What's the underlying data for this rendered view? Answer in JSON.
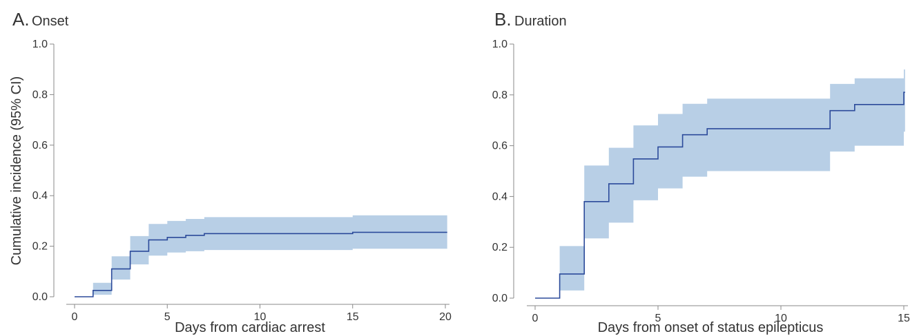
{
  "chart_data": [
    {
      "type": "line",
      "step": true,
      "panel_letter": "A.",
      "panel_title": "Onset",
      "xlabel": "Days from cardiac arrest",
      "ylabel": "Cumulative incidence (95% CI)",
      "xlim": [
        0,
        20
      ],
      "ylim": [
        0,
        1.0
      ],
      "xticks": [
        0,
        5,
        10,
        15,
        20
      ],
      "yticks": [
        "0.0",
        "0.2",
        "0.4",
        "0.6",
        "0.8",
        "1.0"
      ],
      "colors": {
        "line": "#2b4a9a",
        "band": "#b8cfe6"
      },
      "series": [
        {
          "x": [
            0,
            1,
            2,
            3,
            4,
            5,
            6,
            7,
            15,
            20.1
          ],
          "y": [
            0.0,
            0.025,
            0.11,
            0.18,
            0.225,
            0.235,
            0.243,
            0.25,
            0.255,
            0.255
          ],
          "lower": [
            0.0,
            0.008,
            0.068,
            0.128,
            0.163,
            0.175,
            0.18,
            0.185,
            0.19,
            0.19
          ],
          "upper": [
            0.0,
            0.055,
            0.16,
            0.24,
            0.288,
            0.3,
            0.308,
            0.315,
            0.322,
            0.322
          ]
        }
      ]
    },
    {
      "type": "line",
      "step": true,
      "panel_letter": "B.",
      "panel_title": "Duration",
      "xlabel": "Days from onset of status epilepticus",
      "ylabel": "",
      "xlim": [
        0,
        15
      ],
      "ylim": [
        0,
        1.0
      ],
      "xticks": [
        0,
        5,
        10,
        15
      ],
      "yticks": [
        "0.0",
        "0.2",
        "0.4",
        "0.6",
        "0.8",
        "1.0"
      ],
      "colors": {
        "line": "#2b4a9a",
        "band": "#b8cfe6"
      },
      "series": [
        {
          "x": [
            0,
            1,
            2,
            3,
            4,
            5,
            6,
            7,
            12,
            13,
            15,
            15.05
          ],
          "y": [
            0.0,
            0.095,
            0.38,
            0.45,
            0.548,
            0.595,
            0.643,
            0.667,
            0.738,
            0.762,
            0.81,
            0.81
          ],
          "lower": [
            0.0,
            0.03,
            0.235,
            0.297,
            0.385,
            0.432,
            0.478,
            0.5,
            0.577,
            0.6,
            0.655,
            0.655
          ],
          "upper": [
            0.0,
            0.205,
            0.522,
            0.592,
            0.68,
            0.725,
            0.765,
            0.785,
            0.843,
            0.865,
            0.9,
            0.9
          ]
        }
      ]
    }
  ]
}
